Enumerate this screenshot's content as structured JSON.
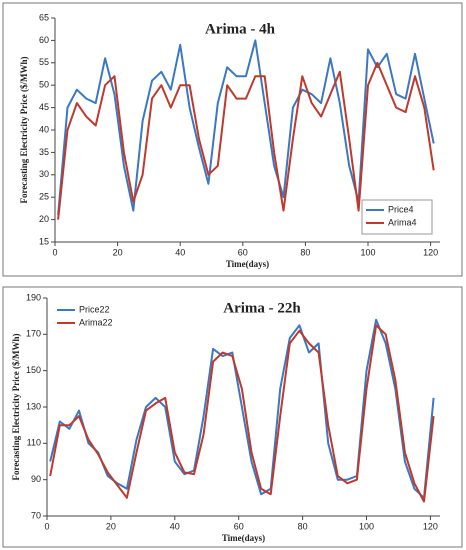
{
  "chart_data": [
    {
      "type": "line",
      "title": "Arima - 4h",
      "xlabel": "Time(days)",
      "ylabel": "Forecasting Electricity Price ($/MWh)",
      "x": [
        1,
        4,
        7,
        10,
        13,
        16,
        19,
        22,
        25,
        28,
        31,
        34,
        37,
        40,
        43,
        46,
        49,
        52,
        55,
        58,
        61,
        64,
        67,
        70,
        73,
        76,
        79,
        82,
        85,
        88,
        91,
        94,
        97,
        100,
        103,
        106,
        109,
        112,
        115,
        118,
        121
      ],
      "series": [
        {
          "name": "Price4",
          "color": "#3a78c3",
          "values": [
            21,
            45,
            49,
            47,
            46,
            56,
            48,
            32,
            22,
            42,
            51,
            53,
            49,
            59,
            45,
            36,
            28,
            46,
            54,
            52,
            52,
            60,
            46,
            32,
            25,
            45,
            49,
            48,
            46,
            56,
            46,
            32,
            24,
            58,
            54,
            57,
            48,
            47,
            57,
            47,
            37
          ]
        },
        {
          "name": "Arima4",
          "color": "#c0392b",
          "values": [
            20,
            40,
            46,
            43,
            41,
            50,
            52,
            35,
            24,
            30,
            47,
            50,
            45,
            50,
            50,
            38,
            30,
            32,
            50,
            47,
            47,
            52,
            52,
            35,
            22,
            38,
            52,
            46,
            43,
            48,
            53,
            38,
            22,
            50,
            55,
            50,
            45,
            44,
            52,
            45,
            31
          ]
        }
      ],
      "xlim": [
        0,
        123
      ],
      "xticks": [
        0,
        20,
        40,
        60,
        80,
        100,
        120
      ],
      "ylim": [
        15,
        65
      ],
      "yticks": [
        15,
        20,
        25,
        30,
        35,
        40,
        45,
        50,
        55,
        60,
        65
      ],
      "legend": "lower right"
    },
    {
      "type": "line",
      "title": "Arima - 22h",
      "xlabel": "Time(days)",
      "ylabel": "Forecasting Electricity Price ($/MWh)",
      "x": [
        1,
        4,
        7,
        10,
        13,
        16,
        19,
        22,
        25,
        28,
        31,
        34,
        37,
        40,
        43,
        46,
        49,
        52,
        55,
        58,
        61,
        64,
        67,
        70,
        73,
        76,
        79,
        82,
        85,
        88,
        91,
        94,
        97,
        100,
        103,
        106,
        109,
        112,
        115,
        118,
        121
      ],
      "series": [
        {
          "name": "Price22",
          "color": "#3a78c3",
          "values": [
            100,
            122,
            118,
            128,
            110,
            105,
            92,
            88,
            85,
            112,
            130,
            135,
            130,
            100,
            93,
            95,
            125,
            162,
            158,
            160,
            130,
            100,
            82,
            85,
            140,
            168,
            175,
            160,
            165,
            110,
            90,
            90,
            92,
            150,
            178,
            165,
            140,
            100,
            85,
            80,
            135
          ]
        },
        {
          "name": "Arima22",
          "color": "#c0392b",
          "values": [
            92,
            120,
            120,
            125,
            112,
            104,
            94,
            87,
            80,
            105,
            128,
            132,
            135,
            105,
            94,
            93,
            115,
            155,
            160,
            158,
            140,
            105,
            85,
            82,
            125,
            165,
            172,
            165,
            160,
            120,
            92,
            88,
            90,
            140,
            175,
            170,
            145,
            105,
            88,
            78,
            125
          ]
        }
      ],
      "xlim": [
        0,
        123
      ],
      "xticks": [
        0,
        20,
        40,
        60,
        80,
        100,
        120
      ],
      "ylim": [
        70,
        190
      ],
      "yticks": [
        70,
        90,
        110,
        130,
        150,
        170,
        190
      ],
      "legend": "upper left"
    }
  ]
}
